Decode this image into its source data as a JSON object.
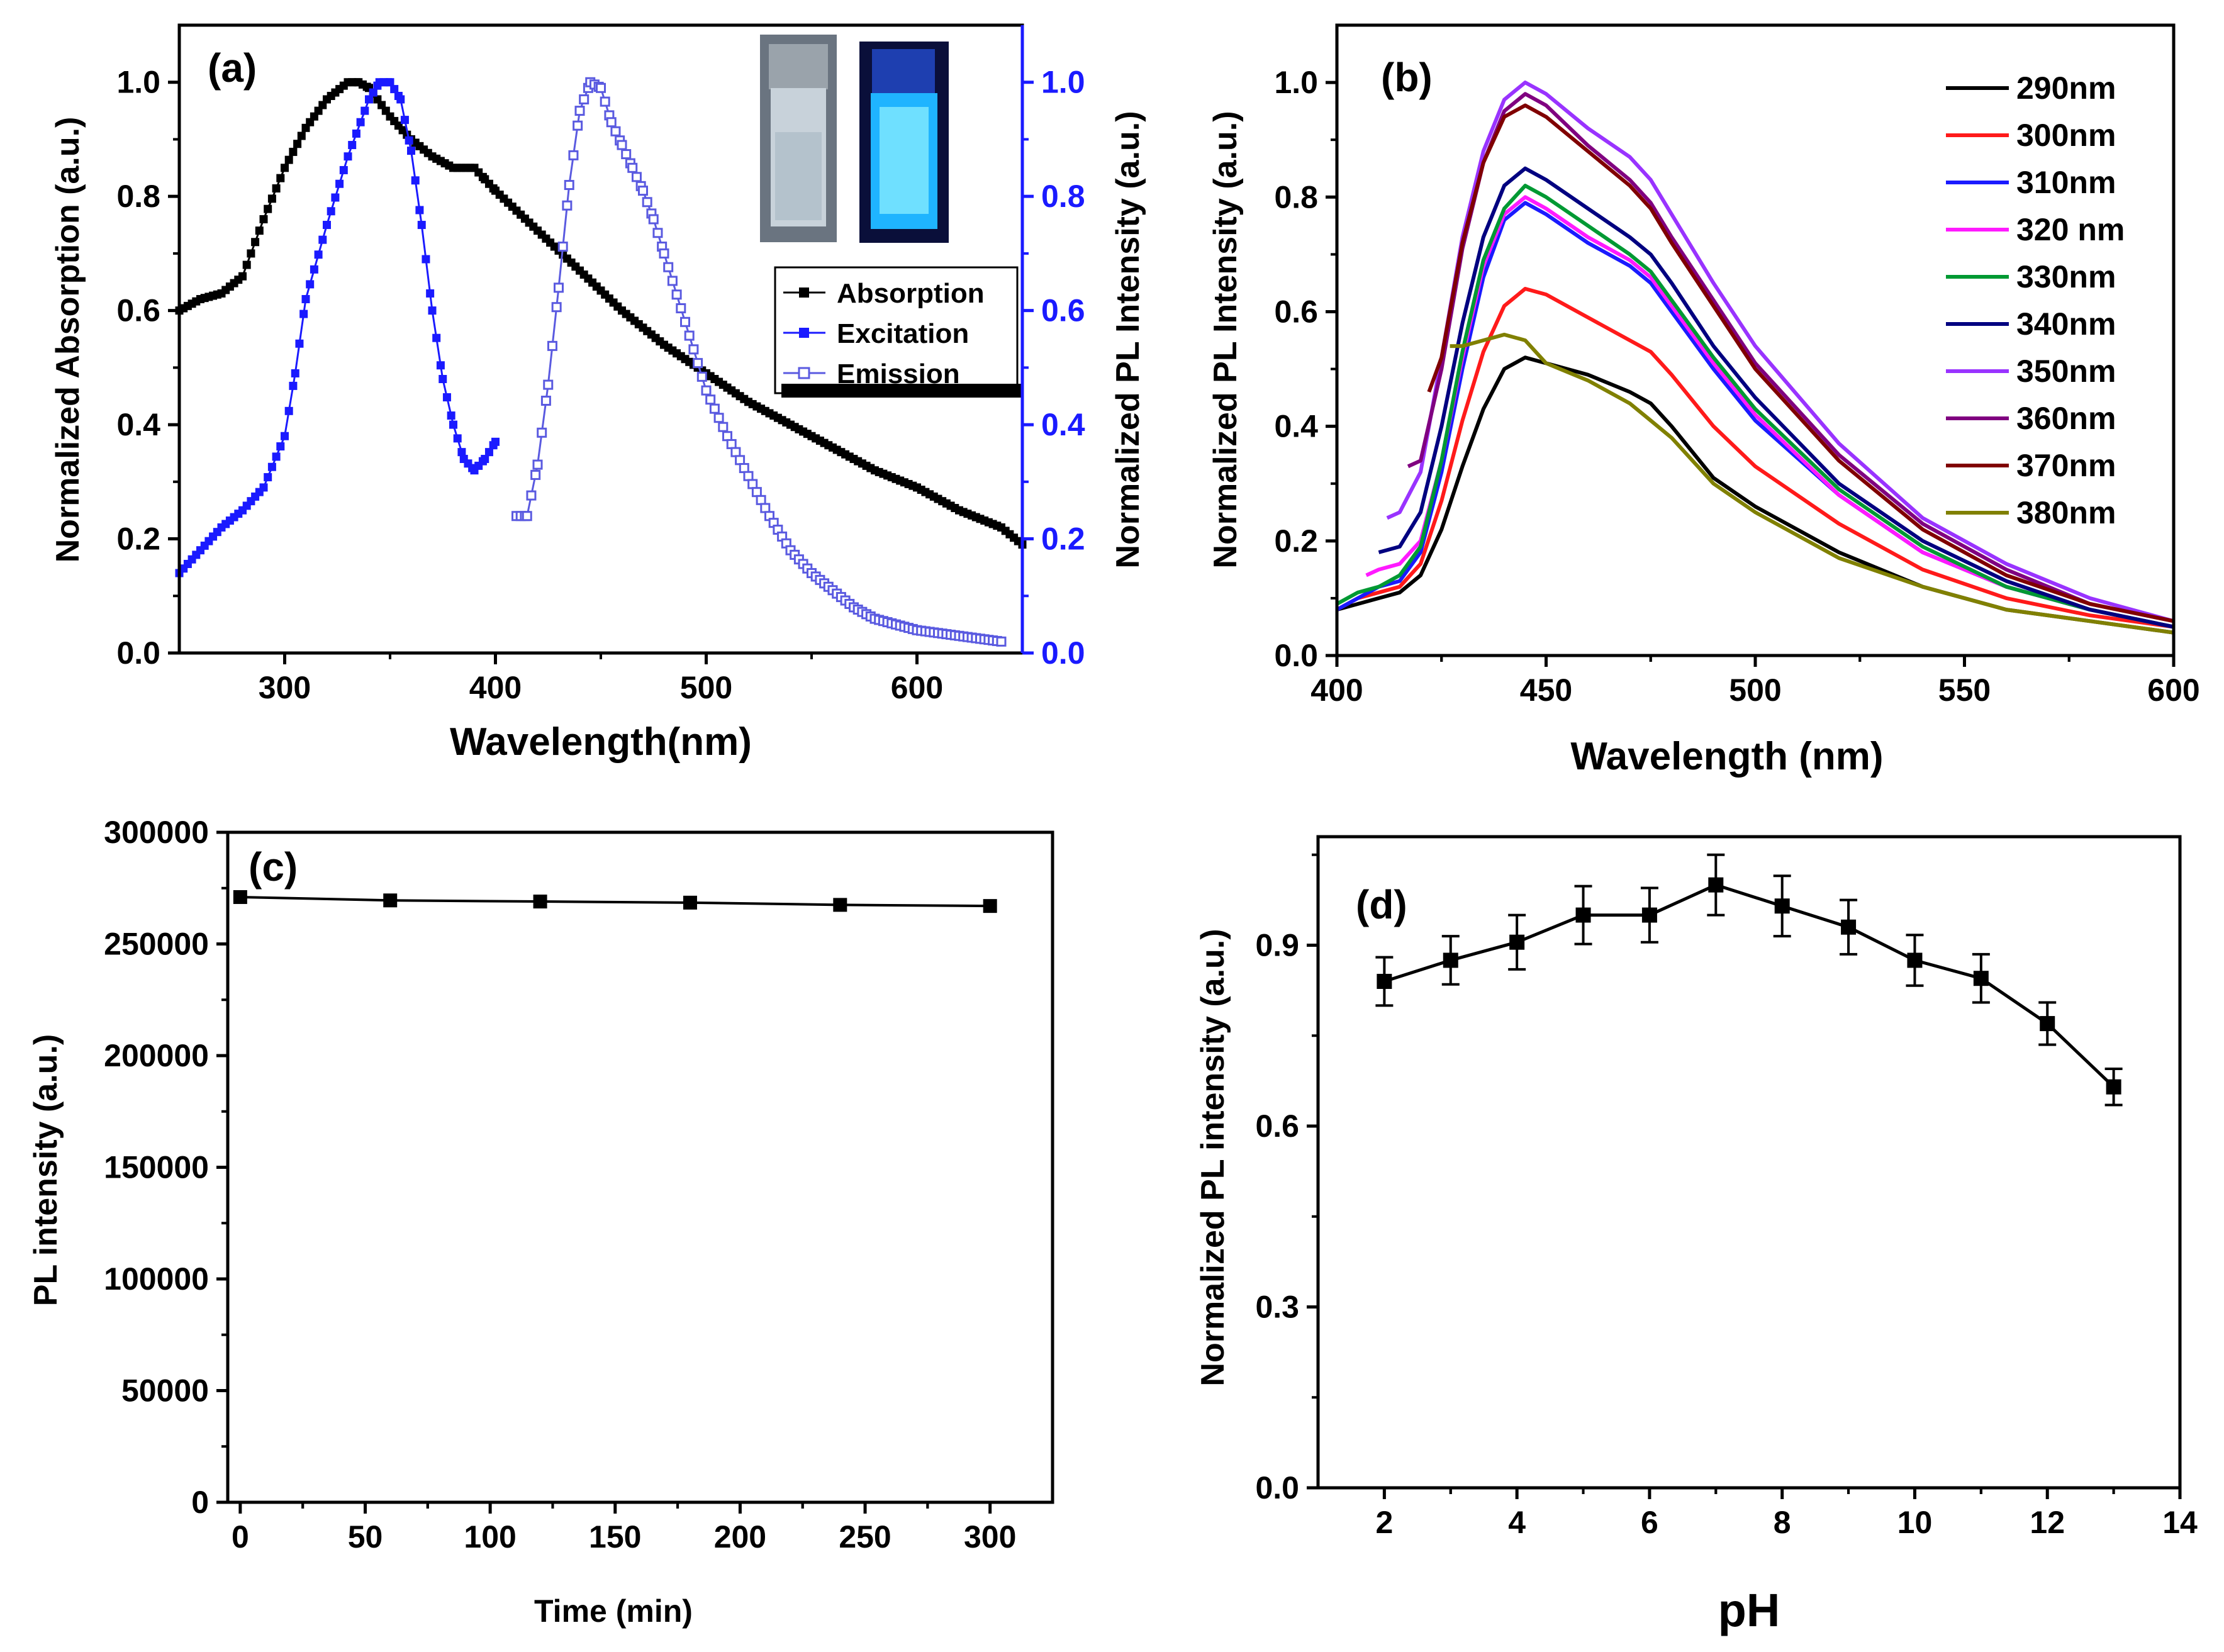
{
  "chart_data": [
    {
      "id": "a",
      "type": "line",
      "panel_label": "(a)",
      "xlabel": "Wavelength(nm)",
      "ylabel": "Normalized Absorption (a.u.)",
      "ylabel_right": "Normalized PL Intensity (a.u.)",
      "xlim": [
        250,
        650
      ],
      "ylim": [
        0,
        1.1
      ],
      "ylim_right": [
        0,
        1.1
      ],
      "xticks": [
        "300",
        "400",
        "500",
        "600"
      ],
      "yticks": [
        "0.0",
        "0.2",
        "0.4",
        "0.6",
        "0.8",
        "1.0"
      ],
      "yticks_right": [
        "0.0",
        "0.2",
        "0.4",
        "0.6",
        "0.8",
        "1.0"
      ],
      "legend_position": "right",
      "inset": "vial photographs: daylight (clear) and UV light (blue fluorescence)",
      "colors": {
        "axis": "#000000",
        "absorption": "#000000",
        "excitation": "#1a1aff",
        "emission": "#5a5ae0",
        "right_axis": "#1a1aff"
      },
      "series": [
        {
          "name": "Absorption",
          "marker": "filled-square",
          "axis": "left",
          "x": [
            250,
            260,
            270,
            280,
            290,
            300,
            310,
            320,
            330,
            335,
            340,
            350,
            360,
            370,
            380,
            390,
            395,
            400,
            420,
            440,
            460,
            480,
            500,
            520,
            540,
            560,
            580,
            600,
            620,
            640,
            650
          ],
          "y": [
            0.6,
            0.62,
            0.63,
            0.66,
            0.76,
            0.85,
            0.92,
            0.97,
            1.0,
            1.0,
            0.99,
            0.94,
            0.9,
            0.87,
            0.85,
            0.85,
            0.83,
            0.81,
            0.74,
            0.67,
            0.6,
            0.54,
            0.49,
            0.44,
            0.4,
            0.36,
            0.32,
            0.29,
            0.25,
            0.22,
            0.19
          ]
        },
        {
          "name": "Excitation",
          "marker": "filled-square",
          "axis": "right",
          "x": [
            250,
            260,
            270,
            280,
            290,
            300,
            305,
            310,
            320,
            330,
            340,
            345,
            350,
            355,
            360,
            365,
            370,
            375,
            380,
            385,
            390,
            395,
            400
          ],
          "y": [
            0.14,
            0.18,
            0.22,
            0.25,
            0.29,
            0.38,
            0.49,
            0.62,
            0.75,
            0.87,
            0.97,
            1.0,
            1.0,
            0.97,
            0.88,
            0.75,
            0.6,
            0.48,
            0.4,
            0.34,
            0.32,
            0.34,
            0.37
          ]
        },
        {
          "name": "Emission",
          "marker": "open-square",
          "axis": "right",
          "x": [
            410,
            415,
            420,
            425,
            430,
            435,
            440,
            445,
            450,
            455,
            460,
            465,
            470,
            475,
            480,
            490,
            500,
            510,
            520,
            530,
            540,
            550,
            560,
            570,
            580,
            590,
            600,
            620,
            640
          ],
          "y": [
            0.24,
            0.24,
            0.33,
            0.47,
            0.64,
            0.82,
            0.95,
            1.0,
            0.99,
            0.93,
            0.89,
            0.85,
            0.81,
            0.76,
            0.7,
            0.58,
            0.46,
            0.38,
            0.31,
            0.24,
            0.18,
            0.14,
            0.11,
            0.08,
            0.06,
            0.05,
            0.04,
            0.03,
            0.02
          ]
        }
      ]
    },
    {
      "id": "b",
      "type": "line",
      "panel_label": "(b)",
      "xlabel": "Wavelength (nm)",
      "ylabel": "Normalized PL Intensity (a.u.)",
      "xlim": [
        400,
        600
      ],
      "ylim": [
        0,
        1.1
      ],
      "xticks": [
        "400",
        "450",
        "500",
        "550",
        "600"
      ],
      "yticks": [
        "0.0",
        "0.2",
        "0.4",
        "0.6",
        "0.8",
        "1.0"
      ],
      "legend_position": "top-right",
      "series": [
        {
          "name": "290nm",
          "color": "#000000",
          "x": [
            400,
            405,
            410,
            415,
            420,
            425,
            430,
            435,
            440,
            445,
            450,
            460,
            470,
            475,
            480,
            490,
            500,
            520,
            540,
            560,
            580,
            600
          ],
          "y": [
            0.08,
            0.09,
            0.1,
            0.11,
            0.14,
            0.22,
            0.33,
            0.43,
            0.5,
            0.52,
            0.51,
            0.49,
            0.46,
            0.44,
            0.4,
            0.31,
            0.26,
            0.18,
            0.12,
            0.08,
            0.06,
            0.04
          ]
        },
        {
          "name": "300nm",
          "color": "#ff1a1a",
          "x": [
            400,
            405,
            410,
            415,
            420,
            425,
            430,
            435,
            440,
            445,
            450,
            460,
            470,
            475,
            480,
            490,
            500,
            520,
            540,
            560,
            580,
            600
          ],
          "y": [
            0.08,
            0.1,
            0.11,
            0.12,
            0.16,
            0.27,
            0.41,
            0.53,
            0.61,
            0.64,
            0.63,
            0.59,
            0.55,
            0.53,
            0.49,
            0.4,
            0.33,
            0.23,
            0.15,
            0.1,
            0.07,
            0.05
          ]
        },
        {
          "name": "310nm",
          "color": "#1a1aff",
          "x": [
            400,
            405,
            410,
            415,
            420,
            425,
            430,
            435,
            440,
            445,
            450,
            460,
            470,
            475,
            480,
            490,
            500,
            520,
            540,
            560,
            580,
            600
          ],
          "y": [
            0.08,
            0.1,
            0.12,
            0.13,
            0.18,
            0.32,
            0.5,
            0.66,
            0.76,
            0.79,
            0.77,
            0.72,
            0.68,
            0.65,
            0.6,
            0.5,
            0.41,
            0.28,
            0.18,
            0.12,
            0.08,
            0.05
          ]
        },
        {
          "name": "320 nm",
          "color": "#ff1aff",
          "x": [
            407,
            410,
            415,
            420,
            425,
            430,
            435,
            440,
            445,
            450,
            460,
            470,
            475,
            480,
            490,
            500,
            520,
            540,
            560,
            580,
            600
          ],
          "y": [
            0.14,
            0.15,
            0.16,
            0.2,
            0.34,
            0.52,
            0.68,
            0.77,
            0.8,
            0.78,
            0.73,
            0.69,
            0.66,
            0.61,
            0.51,
            0.42,
            0.28,
            0.18,
            0.12,
            0.08,
            0.05
          ]
        },
        {
          "name": "330nm",
          "color": "#009933",
          "x": [
            400,
            405,
            410,
            415,
            420,
            425,
            430,
            435,
            440,
            445,
            450,
            460,
            470,
            475,
            480,
            490,
            500,
            520,
            540,
            560,
            580,
            600
          ],
          "y": [
            0.09,
            0.11,
            0.12,
            0.14,
            0.19,
            0.34,
            0.53,
            0.69,
            0.78,
            0.82,
            0.8,
            0.75,
            0.7,
            0.67,
            0.62,
            0.52,
            0.43,
            0.29,
            0.19,
            0.12,
            0.08,
            0.05
          ]
        },
        {
          "name": "340nm",
          "color": "#000080",
          "x": [
            410,
            415,
            420,
            425,
            430,
            435,
            440,
            445,
            450,
            460,
            470,
            475,
            480,
            490,
            500,
            520,
            540,
            560,
            580,
            600
          ],
          "y": [
            0.18,
            0.19,
            0.25,
            0.4,
            0.58,
            0.73,
            0.82,
            0.85,
            0.83,
            0.78,
            0.73,
            0.7,
            0.65,
            0.54,
            0.45,
            0.3,
            0.2,
            0.13,
            0.08,
            0.05
          ]
        },
        {
          "name": "350nm",
          "color": "#9933ff",
          "x": [
            412,
            415,
            420,
            425,
            430,
            435,
            440,
            445,
            450,
            460,
            470,
            475,
            480,
            490,
            500,
            520,
            540,
            560,
            580,
            600
          ],
          "y": [
            0.24,
            0.25,
            0.32,
            0.52,
            0.73,
            0.88,
            0.97,
            1.0,
            0.98,
            0.92,
            0.87,
            0.83,
            0.77,
            0.65,
            0.54,
            0.37,
            0.24,
            0.16,
            0.1,
            0.06
          ]
        },
        {
          "name": "360nm",
          "color": "#800080",
          "x": [
            417,
            420,
            425,
            430,
            435,
            440,
            445,
            450,
            460,
            470,
            475,
            480,
            490,
            500,
            520,
            540,
            560,
            580,
            600
          ],
          "y": [
            0.33,
            0.34,
            0.5,
            0.71,
            0.86,
            0.95,
            0.98,
            0.96,
            0.89,
            0.83,
            0.79,
            0.73,
            0.62,
            0.51,
            0.35,
            0.23,
            0.15,
            0.09,
            0.06
          ]
        },
        {
          "name": "370nm",
          "color": "#800000",
          "x": [
            422,
            425,
            430,
            435,
            440,
            445,
            450,
            460,
            470,
            475,
            480,
            490,
            500,
            520,
            540,
            560,
            580,
            600
          ],
          "y": [
            0.46,
            0.52,
            0.72,
            0.86,
            0.94,
            0.96,
            0.94,
            0.88,
            0.82,
            0.78,
            0.72,
            0.61,
            0.5,
            0.34,
            0.22,
            0.14,
            0.09,
            0.06
          ]
        },
        {
          "name": "380nm",
          "color": "#808000",
          "x": [
            427,
            430,
            435,
            440,
            445,
            450,
            460,
            470,
            475,
            480,
            490,
            500,
            520,
            540,
            560,
            580,
            600
          ],
          "y": [
            0.54,
            0.54,
            0.55,
            0.56,
            0.55,
            0.51,
            0.48,
            0.44,
            0.41,
            0.38,
            0.3,
            0.25,
            0.17,
            0.12,
            0.08,
            0.06,
            0.04
          ]
        }
      ]
    },
    {
      "id": "c",
      "type": "line",
      "panel_label": "(c)",
      "xlabel": "Time (min)",
      "ylabel": "PL intensity (a.u.)",
      "xlim": [
        -5,
        325
      ],
      "ylim": [
        0,
        300000
      ],
      "xticks": [
        "0",
        "50",
        "100",
        "150",
        "200",
        "250",
        "300"
      ],
      "yticks": [
        "0",
        "50000",
        "100000",
        "150000",
        "200000",
        "250000",
        "300000"
      ],
      "series": [
        {
          "name": "PL intensity",
          "marker": "filled-square",
          "color": "#000000",
          "x": [
            0,
            60,
            120,
            180,
            240,
            300
          ],
          "y": [
            271000,
            269500,
            269000,
            268500,
            267500,
            267000
          ]
        }
      ]
    },
    {
      "id": "d",
      "type": "line",
      "panel_label": "(d)",
      "xlabel": "pH",
      "ylabel": "Normalized PL intensity (a.u.)",
      "xlim": [
        1,
        14
      ],
      "ylim": [
        0,
        1.08
      ],
      "xticks": [
        "2",
        "4",
        "6",
        "8",
        "10",
        "12",
        "14"
      ],
      "yticks": [
        "0.0",
        "0.3",
        "0.6",
        "0.9"
      ],
      "series": [
        {
          "name": "Normalized PL intensity",
          "marker": "filled-square",
          "color": "#000000",
          "x": [
            2,
            3,
            4,
            5,
            6,
            7,
            8,
            9,
            10,
            11,
            12,
            13
          ],
          "y": [
            0.84,
            0.875,
            0.905,
            0.95,
            0.95,
            1.0,
            0.965,
            0.93,
            0.875,
            0.845,
            0.77,
            0.665
          ],
          "error": [
            0.04,
            0.04,
            0.045,
            0.048,
            0.045,
            0.05,
            0.05,
            0.045,
            0.042,
            0.04,
            0.035,
            0.03
          ]
        }
      ]
    }
  ]
}
